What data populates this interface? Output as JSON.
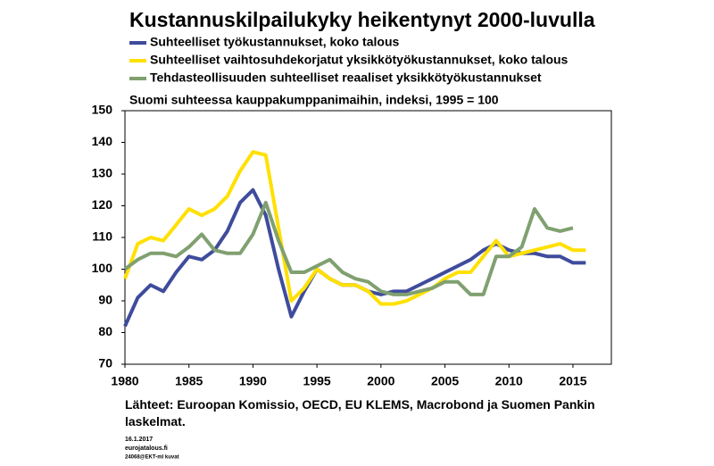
{
  "chart_data": {
    "type": "line",
    "title": "Kustannuskilpailukyky heikentynyt 2000-luvulla",
    "subtitle": "Suomi suhteessa kauppakumppanimaihin, indeksi, 1995 = 100",
    "x": [
      1980,
      1981,
      1982,
      1983,
      1984,
      1985,
      1986,
      1987,
      1988,
      1989,
      1990,
      1991,
      1992,
      1993,
      1994,
      1995,
      1996,
      1997,
      1998,
      1999,
      2000,
      2001,
      2002,
      2003,
      2004,
      2005,
      2006,
      2007,
      2008,
      2009,
      2010,
      2011,
      2012,
      2013,
      2014,
      2015,
      2016
    ],
    "series": [
      {
        "name": "Suhteelliset työkustannukset, koko talous",
        "color": "#3f4c9c",
        "values": [
          82,
          91,
          95,
          93,
          99,
          104,
          103,
          106,
          112,
          121,
          125,
          117,
          100,
          85,
          93,
          100,
          97,
          95,
          95,
          93,
          92,
          93,
          93,
          95,
          97,
          99,
          101,
          103,
          106,
          108,
          106,
          105,
          105,
          104,
          104,
          102,
          102
        ]
      },
      {
        "name": "Suhteelliset vaihtosuhdekorjatut yksikkötyökustannukset, koko talous",
        "color": "#ffe000",
        "values": [
          97,
          108,
          110,
          109,
          114,
          119,
          117,
          119,
          123,
          131,
          137,
          136,
          113,
          90,
          94,
          100,
          97,
          95,
          95,
          93,
          89,
          89,
          90,
          92,
          94,
          97,
          99,
          99,
          104,
          109,
          104,
          105,
          106,
          107,
          108,
          106,
          106
        ]
      },
      {
        "name": "Tehdasteollisuuden suhteelliset reaaliset yksikkötyökustannukset",
        "color": "#80a070",
        "values": [
          100,
          103,
          105,
          105,
          104,
          107,
          111,
          106,
          105,
          105,
          111,
          121,
          109,
          99,
          99,
          101,
          103,
          99,
          97,
          96,
          93,
          92,
          92,
          93,
          94,
          96,
          96,
          92,
          92,
          104,
          104,
          107,
          119,
          113,
          112,
          113,
          null
        ]
      }
    ],
    "xlim": [
      1980,
      2018
    ],
    "xticks": [
      1980,
      1985,
      1990,
      1995,
      2000,
      2005,
      2010,
      2015
    ],
    "ylim": [
      70,
      150
    ],
    "yticks": [
      70,
      80,
      90,
      100,
      110,
      120,
      130,
      140,
      150
    ],
    "grid": false,
    "source": "Lähteet: Euroopan Komissio, OECD, EU KLEMS, Macrobond ja Suomen Pankin laskelmat.",
    "footnotes": [
      "16.1.2017",
      "eurojatalous.fi",
      "24068@EKT-ml kuvat"
    ]
  }
}
